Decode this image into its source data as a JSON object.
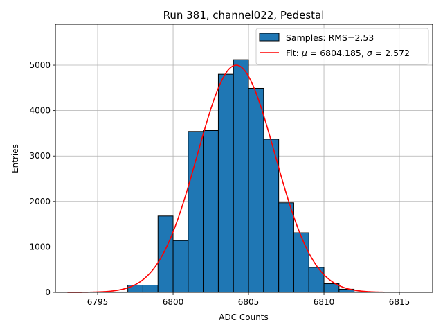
{
  "chart_data": {
    "type": "bar",
    "title": "Run 381, channel022, Pedestal",
    "xlabel": "ADC Counts",
    "ylabel": "Entries",
    "xlim": [
      6792.2,
      6817.2
    ],
    "ylim": [
      0,
      5900
    ],
    "xticks": [
      6795,
      6800,
      6805,
      6810,
      6815
    ],
    "yticks": [
      0,
      1000,
      2000,
      3000,
      4000,
      5000
    ],
    "grid": true,
    "legend_position": "top-right",
    "histogram": {
      "name": "Samples: RMS=2.53",
      "color": "#1f77b4",
      "edgecolor": "#000000",
      "bin_width": 1,
      "bins": [
        {
          "x": 6795,
          "count": 2
        },
        {
          "x": 6796,
          "count": 8
        },
        {
          "x": 6797,
          "count": 160
        },
        {
          "x": 6798,
          "count": 160
        },
        {
          "x": 6799,
          "count": 1680
        },
        {
          "x": 6800,
          "count": 1140
        },
        {
          "x": 6801,
          "count": 3540
        },
        {
          "x": 6802,
          "count": 3560
        },
        {
          "x": 6803,
          "count": 4800
        },
        {
          "x": 6804,
          "count": 5120
        },
        {
          "x": 6805,
          "count": 4490
        },
        {
          "x": 6806,
          "count": 3370
        },
        {
          "x": 6807,
          "count": 1970
        },
        {
          "x": 6808,
          "count": 1310
        },
        {
          "x": 6809,
          "count": 550
        },
        {
          "x": 6810,
          "count": 190
        },
        {
          "x": 6811,
          "count": 70
        },
        {
          "x": 6812,
          "count": 10
        }
      ]
    },
    "fit": {
      "color": "#ff0000",
      "mu": 6804.185,
      "sigma": 2.572,
      "amplitude": 5000,
      "x_range": [
        6793.0,
        6814.0
      ],
      "label_prefix": "Fit: ",
      "mu_symbol": "μ",
      "mu_value": "6804.185",
      "sigma_symbol": "σ",
      "sigma_value": "2.572",
      "label_sep": ", "
    }
  }
}
